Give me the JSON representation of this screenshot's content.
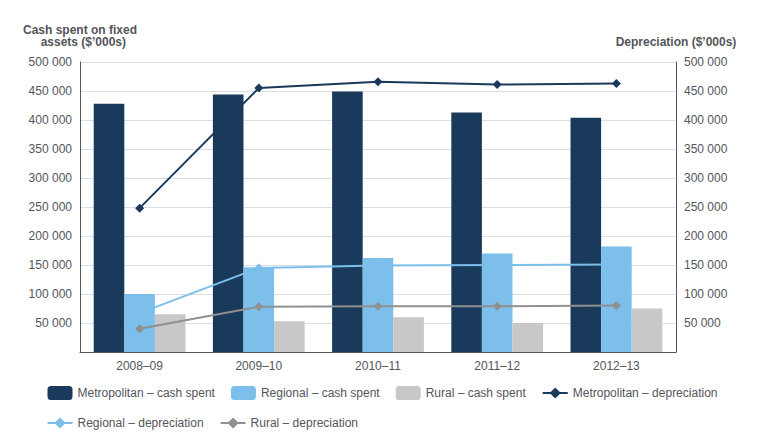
{
  "chart_data": {
    "type": "bar",
    "ylabel": [
      "Cash spent on fixed",
      "  assets ($’000s)"
    ],
    "y2label": "Depreciation ($’000s)",
    "categories": [
      "2008–09",
      "2009–10",
      "2010–11",
      "2011–12",
      "2012–13"
    ],
    "series": [
      {
        "name": "Metropolitan – cash spent",
        "type": "bar",
        "color": "#1a3a5c",
        "values": [
          428000,
          444000,
          449000,
          413000,
          404000
        ]
      },
      {
        "name": "Regional – cash spent",
        "type": "bar",
        "color": "#7bbfea",
        "values": [
          100000,
          146000,
          162000,
          170000,
          182000
        ]
      },
      {
        "name": "Rural – cash spent",
        "type": "bar",
        "color": "#c8c8c8",
        "values": [
          65000,
          53000,
          60000,
          50000,
          75000
        ]
      },
      {
        "name": "Metropolitan – depreciation",
        "type": "line",
        "axis": "y2",
        "marker": "diamond",
        "color": "#1a3a5c",
        "values": [
          248000,
          455000,
          466000,
          461000,
          463000
        ]
      },
      {
        "name": "Regional – depreciation",
        "type": "line",
        "axis": "y2",
        "marker": "diamond",
        "color": "#7bbfea",
        "values": [
          67000,
          145000,
          149000,
          150000,
          151000
        ]
      },
      {
        "name": "Rural – depreciation",
        "type": "line",
        "axis": "y2",
        "marker": "diamond",
        "color": "#909090",
        "values": [
          40000,
          78000,
          79000,
          79000,
          80000
        ]
      }
    ],
    "ylim": [
      0,
      500000
    ],
    "yticks": [
      {
        "value": 50000,
        "label": "50 000"
      },
      {
        "value": 100000,
        "label": "100 000"
      },
      {
        "value": 150000,
        "label": "150 000"
      },
      {
        "value": 200000,
        "label": "200 000"
      },
      {
        "value": 250000,
        "label": "250 000"
      },
      {
        "value": 300000,
        "label": "300 000"
      },
      {
        "value": 350000,
        "label": "350 000"
      },
      {
        "value": 400000,
        "label": "400 000"
      },
      {
        "value": 450000,
        "label": "450 000"
      },
      {
        "value": 500000,
        "label": "500 000"
      }
    ],
    "y2lim": [
      0,
      500000
    ],
    "y2ticks": [
      {
        "value": 50000,
        "label": "50 000"
      },
      {
        "value": 100000,
        "label": "100 000"
      },
      {
        "value": 150000,
        "label": "150 000"
      },
      {
        "value": 200000,
        "label": "200 000"
      },
      {
        "value": 250000,
        "label": "250 000"
      },
      {
        "value": 300000,
        "label": "300 000"
      },
      {
        "value": 350000,
        "label": "350 000"
      },
      {
        "value": 400000,
        "label": "400 000"
      },
      {
        "value": 450000,
        "label": "450 000"
      },
      {
        "value": 500000,
        "label": "500 000"
      }
    ],
    "grid": true,
    "legend": "bottom"
  }
}
